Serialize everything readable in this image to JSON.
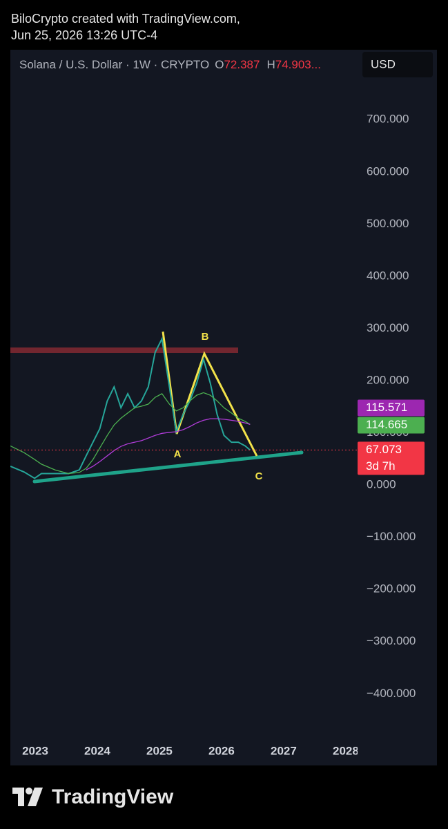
{
  "header": {
    "line1": "BiloCrypto created with TradingView.com,",
    "line2": "Jun 25, 2026 13:26 UTC-4"
  },
  "chart_data": {
    "type": "line",
    "legend": {
      "symbol": "Solana / U.S. Dollar · 1W · CRYPTO",
      "open": {
        "label": "O",
        "value": 72.387
      },
      "high": {
        "label": "H",
        "value": "74.903..."
      }
    },
    "currency": "USD",
    "x": [
      2022.6,
      2022.82,
      2022.99,
      2023.1,
      2023.32,
      2023.54,
      2023.71,
      2023.82,
      2023.93,
      2024.04,
      2024.16,
      2024.27,
      2024.38,
      2024.49,
      2024.6,
      2024.71,
      2024.82,
      2024.93,
      2025.04,
      2025.16,
      2025.27,
      2025.38,
      2025.49,
      2025.6,
      2025.71,
      2025.82,
      2025.93,
      2026.04,
      2026.16,
      2026.27,
      2026.38,
      2026.46
    ],
    "series": [
      {
        "color": "#26a69a",
        "values": [
          36,
          25,
          13,
          22,
          22,
          22,
          29,
          56,
          82,
          108,
          161,
          188,
          148,
          175,
          148,
          161,
          188,
          254,
          280,
          188,
          102,
          135,
          161,
          195,
          241,
          195,
          135,
          95,
          82,
          82,
          75,
          67
        ]
      },
      {
        "color": "#4caf50",
        "values": [
          75,
          62,
          49,
          40,
          29,
          22,
          24,
          32,
          49,
          71,
          95,
          115,
          128,
          138,
          148,
          151,
          155,
          168,
          175,
          155,
          142,
          148,
          161,
          172,
          177,
          172,
          161,
          148,
          138,
          128,
          122,
          116
        ]
      },
      {
        "color": "#b03cd8",
        "values": [
          null,
          null,
          null,
          null,
          null,
          null,
          null,
          29,
          36,
          45,
          56,
          66,
          74,
          79,
          82,
          85,
          90,
          95,
          99,
          101,
          102,
          106,
          112,
          119,
          124,
          127,
          127,
          126,
          124,
          122,
          119,
          116
        ]
      }
    ],
    "xlim": [
      2022.6,
      2028.19
    ],
    "xticks": [
      2023,
      2024,
      2025,
      2026,
      2027,
      2028
    ],
    "ylim": [
      -487,
      834
    ],
    "yticks": [
      {
        "value": -400,
        "label": "−400.000"
      },
      {
        "value": -300,
        "label": "−300.000"
      },
      {
        "value": -200,
        "label": "−200.000"
      },
      {
        "value": -100,
        "label": "−100.000"
      },
      {
        "value": 0,
        "label": "0.000"
      },
      {
        "value": 100,
        "label": "100.000"
      },
      {
        "value": 200,
        "label": "200.000"
      },
      {
        "value": 300,
        "label": "300.000"
      },
      {
        "value": 400,
        "label": "400.000"
      },
      {
        "value": 500,
        "label": "500.000"
      },
      {
        "value": 600,
        "label": "600.000"
      },
      {
        "value": 700,
        "label": "700.000"
      }
    ],
    "price_labels": [
      {
        "value": 115.571,
        "color": "#9c27b0"
      },
      {
        "value": 114.665,
        "color": "#4caf50"
      },
      {
        "value": 67.073,
        "note": "3d 7h",
        "color": "#f23645"
      }
    ],
    "wave_labels": [
      "A",
      "B",
      "C"
    ]
  },
  "footer": {
    "brand": "TradingView"
  }
}
